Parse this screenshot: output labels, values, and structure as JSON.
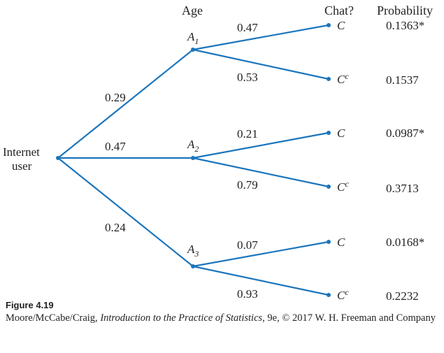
{
  "headers": {
    "age": "Age",
    "chat": "Chat?",
    "probability": "Probability"
  },
  "root": {
    "line1": "Internet",
    "line2": "user"
  },
  "age_nodes": [
    {
      "base": "A",
      "sub": "1"
    },
    {
      "base": "A",
      "sub": "2"
    },
    {
      "base": "A",
      "sub": "3"
    }
  ],
  "first_branch_probs": [
    "0.29",
    "0.47",
    "0.24"
  ],
  "second_branch_probs": [
    "0.47",
    "0.53",
    "0.21",
    "0.79",
    "0.07",
    "0.93"
  ],
  "outcomes": [
    {
      "base": "C",
      "sup": ""
    },
    {
      "base": "C",
      "sup": "c"
    },
    {
      "base": "C",
      "sup": ""
    },
    {
      "base": "C",
      "sup": "c"
    },
    {
      "base": "C",
      "sup": ""
    },
    {
      "base": "C",
      "sup": "c"
    }
  ],
  "probabilities": [
    "0.1363*",
    "0.1537",
    "0.0987*",
    "0.3713",
    "0.0168*",
    "0.2232"
  ],
  "caption": {
    "figure": "Figure 4.19",
    "authors": "Moore/McCabe/Craig, ",
    "book": "Introduction to the Practice of Statistics",
    "rest": ", 9e, © 2017 W. H. Freeman and Company"
  },
  "colors": {
    "line": "#1b75bc",
    "text": "#231f20"
  }
}
